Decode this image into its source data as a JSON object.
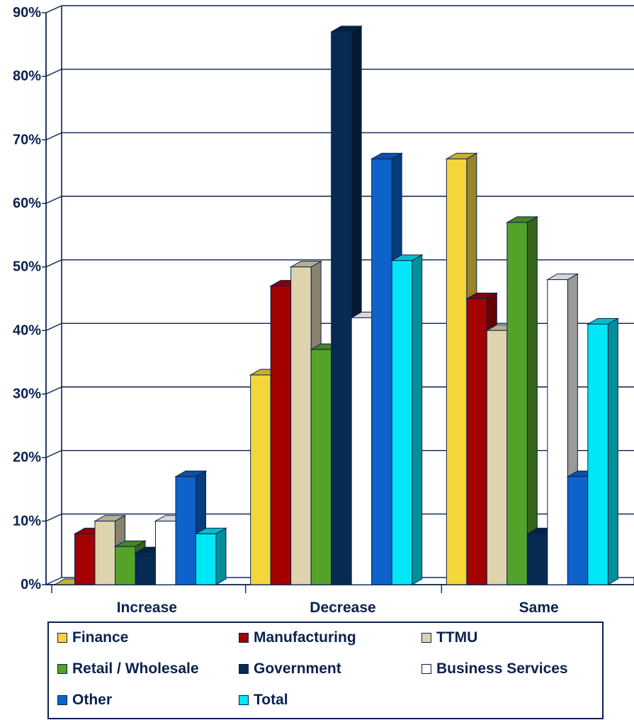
{
  "chart_data": {
    "type": "bar",
    "categories": [
      "Increase",
      "Decrease",
      "Same"
    ],
    "y_ticks": [
      "0%",
      "10%",
      "20%",
      "30%",
      "40%",
      "50%",
      "60%",
      "70%",
      "80%",
      "90%"
    ],
    "ylim": [
      0,
      90
    ],
    "y_unit": "%",
    "grid": true,
    "three_d": true,
    "legend_position": "bottom",
    "series": [
      {
        "name": "Finance",
        "color": "#f5d63a",
        "values": [
          0,
          33,
          67
        ]
      },
      {
        "name": "Manufacturing",
        "color": "#a50000",
        "values": [
          8,
          47,
          45
        ]
      },
      {
        "name": "TTMU",
        "color": "#ddd4ae",
        "values": [
          10,
          50,
          40
        ]
      },
      {
        "name": "Retail / Wholesale",
        "color": "#55a22a",
        "values": [
          6,
          37,
          57
        ]
      },
      {
        "name": "Government",
        "color": "#062a52",
        "values": [
          5,
          87,
          8
        ]
      },
      {
        "name": "Business Services",
        "color": "#ffffff",
        "values": [
          10,
          42,
          48
        ]
      },
      {
        "name": "Other",
        "color": "#0d63c9",
        "values": [
          17,
          67,
          17
        ]
      },
      {
        "name": "Total",
        "color": "#00e8f8",
        "values": [
          8,
          51,
          41
        ]
      }
    ]
  }
}
